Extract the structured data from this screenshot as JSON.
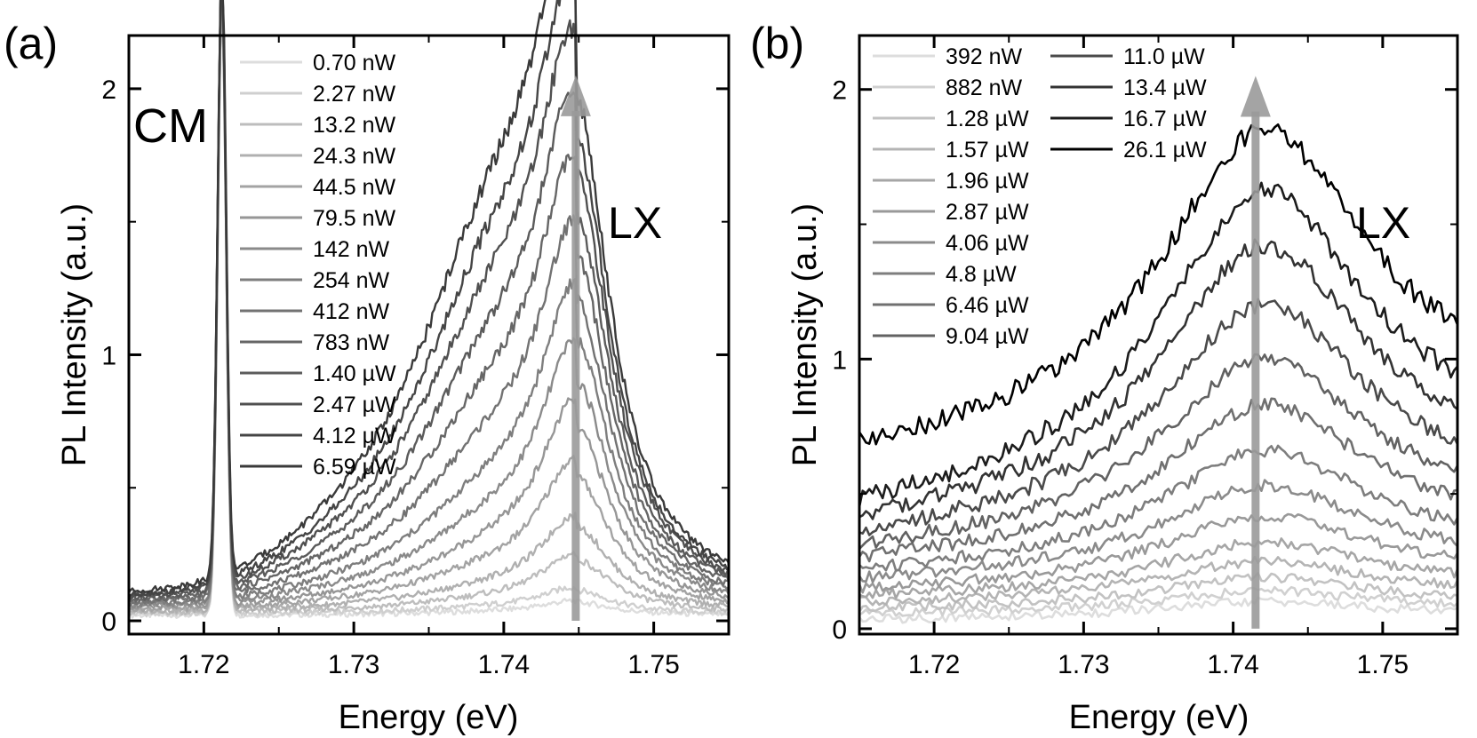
{
  "chart_data": [
    {
      "panel_label": "(a)",
      "type": "line",
      "xlabel": "Energy (eV)",
      "ylabel": "PL Intensity (a.u.)",
      "xlim": [
        1.715,
        1.755
      ],
      "ylim": [
        -0.05,
        2.2
      ],
      "xticks": [
        1.72,
        1.73,
        1.74,
        1.75
      ],
      "xtick_labels": [
        "1.72",
        "1.73",
        "1.74",
        "1.75"
      ],
      "yticks": [
        0,
        1,
        2
      ],
      "ytick_labels": [
        "0",
        "1",
        "2"
      ],
      "annotations": [
        {
          "text": "CM",
          "x": 1.7187,
          "y": 1.8
        },
        {
          "text": "LX",
          "x": 1.7475,
          "y": 1.45
        }
      ],
      "arrow": {
        "x": 1.7448,
        "y_from": 0.0,
        "y_to": 2.05,
        "color": "#9a9a9a"
      },
      "peaks": [
        {
          "name": "CM",
          "center": 1.7212,
          "width": 0.0004
        },
        {
          "name": "LX",
          "center": 1.7448,
          "width": 0.0028
        }
      ],
      "legend_position": "top-left",
      "series": [
        {
          "name": "0.70 nW",
          "color": "#dddddd",
          "lx_peak": 0.05,
          "shoulder": 0.01,
          "cm_peak": 2.3,
          "baseline": 0.02
        },
        {
          "name": "2.27 nW",
          "color": "#cfcfcf",
          "lx_peak": 0.09,
          "shoulder": 0.02,
          "cm_peak": 2.3,
          "baseline": 0.025
        },
        {
          "name": "13.2 nW",
          "color": "#bdbdbd",
          "lx_peak": 0.2,
          "shoulder": 0.04,
          "cm_peak": 2.3,
          "baseline": 0.03
        },
        {
          "name": "24.3 nW",
          "color": "#b0b0b0",
          "lx_peak": 0.32,
          "shoulder": 0.07,
          "cm_peak": 2.3,
          "baseline": 0.035
        },
        {
          "name": "44.5 nW",
          "color": "#a3a3a3",
          "lx_peak": 0.5,
          "shoulder": 0.12,
          "cm_peak": 2.3,
          "baseline": 0.04
        },
        {
          "name": "79.5 nW",
          "color": "#969696",
          "lx_peak": 0.68,
          "shoulder": 0.18,
          "cm_peak": 2.3,
          "baseline": 0.045
        },
        {
          "name": "142 nW",
          "color": "#8a8a8a",
          "lx_peak": 0.85,
          "shoulder": 0.26,
          "cm_peak": 2.3,
          "baseline": 0.05
        },
        {
          "name": "254 nW",
          "color": "#7e7e7e",
          "lx_peak": 1.0,
          "shoulder": 0.36,
          "cm_peak": 2.3,
          "baseline": 0.055
        },
        {
          "name": "412 nW",
          "color": "#727272",
          "lx_peak": 1.15,
          "shoulder": 0.5,
          "cm_peak": 2.3,
          "baseline": 0.06
        },
        {
          "name": "783 nW",
          "color": "#666666",
          "lx_peak": 1.3,
          "shoulder": 0.65,
          "cm_peak": 2.3,
          "baseline": 0.065
        },
        {
          "name": "1.40 µW",
          "color": "#5b5b5b",
          "lx_peak": 1.45,
          "shoulder": 0.8,
          "cm_peak": 2.3,
          "baseline": 0.07
        },
        {
          "name": "2.47 µW",
          "color": "#505050",
          "lx_peak": 1.6,
          "shoulder": 0.95,
          "cm_peak": 2.3,
          "baseline": 0.075
        },
        {
          "name": "4.12 µW",
          "color": "#454545",
          "lx_peak": 1.72,
          "shoulder": 1.1,
          "cm_peak": 2.3,
          "baseline": 0.08
        },
        {
          "name": "6.59 µW",
          "color": "#3a3a3a",
          "lx_peak": 1.87,
          "shoulder": 1.25,
          "cm_peak": 2.3,
          "baseline": 0.09
        }
      ]
    },
    {
      "panel_label": "(b)",
      "type": "line",
      "xlabel": "Energy (eV)",
      "ylabel": "PL Intensity (a.u.)",
      "xlim": [
        1.715,
        1.755
      ],
      "ylim": [
        -0.02,
        2.2
      ],
      "xticks": [
        1.72,
        1.73,
        1.74,
        1.75
      ],
      "xtick_labels": [
        "1.72",
        "1.73",
        "1.74",
        "1.75"
      ],
      "yticks": [
        0,
        1,
        2
      ],
      "ytick_labels": [
        "0",
        "1",
        "2"
      ],
      "annotations": [
        {
          "text": "LX",
          "x": 1.7515,
          "y": 1.52
        }
      ],
      "arrow": {
        "x": 1.7415,
        "y_from": 0.0,
        "y_to": 2.05,
        "color": "#9a9a9a"
      },
      "peaks": [
        {
          "name": "LX",
          "center": 1.742,
          "width": 0.0085
        }
      ],
      "legend_position": "top-left",
      "series": [
        {
          "name": "392 nW",
          "color": "#dddddd",
          "start": 0.03,
          "peak": 0.1,
          "end": 0.05
        },
        {
          "name": "882 nW",
          "color": "#d0d0d0",
          "start": 0.05,
          "peak": 0.14,
          "end": 0.07
        },
        {
          "name": "1.28 µW",
          "color": "#c2c2c2",
          "start": 0.07,
          "peak": 0.19,
          "end": 0.09
        },
        {
          "name": "1.57 µW",
          "color": "#b4b4b4",
          "start": 0.09,
          "peak": 0.25,
          "end": 0.12
        },
        {
          "name": "1.96 µW",
          "color": "#a6a6a6",
          "start": 0.11,
          "peak": 0.32,
          "end": 0.15
        },
        {
          "name": "2.87 µW",
          "color": "#999999",
          "start": 0.13,
          "peak": 0.42,
          "end": 0.19
        },
        {
          "name": "4.06 µW",
          "color": "#8b8b8b",
          "start": 0.16,
          "peak": 0.53,
          "end": 0.23
        },
        {
          "name": "4.8 µW",
          "color": "#7e7e7e",
          "start": 0.19,
          "peak": 0.66,
          "end": 0.28
        },
        {
          "name": "6.46 µW",
          "color": "#707070",
          "start": 0.22,
          "peak": 0.83,
          "end": 0.33
        },
        {
          "name": "9.04 µW",
          "color": "#626262",
          "start": 0.26,
          "peak": 1.0,
          "end": 0.39
        },
        {
          "name": "11.0 µW",
          "color": "#4a4a4a",
          "start": 0.3,
          "peak": 1.2,
          "end": 0.46
        },
        {
          "name": "13.4 µW",
          "color": "#333333",
          "start": 0.34,
          "peak": 1.42,
          "end": 0.54
        },
        {
          "name": "16.7 µW",
          "color": "#1c1c1c",
          "start": 0.39,
          "peak": 1.62,
          "end": 0.63
        },
        {
          "name": "26.1 µW",
          "color": "#000000",
          "start": 0.6,
          "peak": 1.85,
          "end": 0.8
        }
      ]
    }
  ]
}
